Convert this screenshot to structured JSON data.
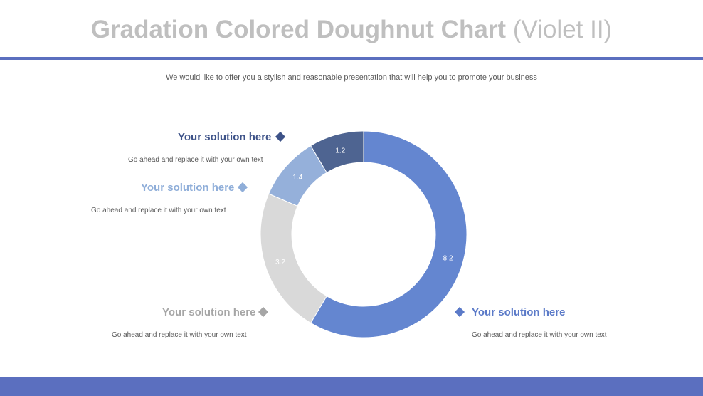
{
  "slide": {
    "title_bold": "Gradation Colored Doughnut Chart",
    "title_rest": "(Violet II)",
    "subtitle": "We would like to offer you a stylish and reasonable presentation that will help you to promote your business"
  },
  "colors": {
    "accent": "#5b6fbf",
    "title_gray": "#bfbfbf",
    "slice_dark": "#4e6491",
    "slice_light": "#95b0da",
    "slice_gray": "#d9d9d9",
    "slice_main": "#6486d0"
  },
  "callouts": [
    {
      "heading": "Your solution  here",
      "text": "Go ahead and replace it with your own text",
      "color": "#3d5288",
      "icon": "diamond-icon"
    },
    {
      "heading": "Your solution  here",
      "text": "Go ahead and replace it with your own text",
      "color": "#8faed9",
      "icon": "diamond-icon"
    },
    {
      "heading": "Your solution  here",
      "text": "Go ahead and replace it with your own text",
      "color": "#a6a6a6",
      "icon": "diamond-icon"
    },
    {
      "heading": "Your solution  here",
      "text": "Go ahead and replace it with your own text",
      "color": "#5b7ac8",
      "icon": "diamond-icon"
    }
  ],
  "chart_data": {
    "type": "pie",
    "variant": "doughnut",
    "values": [
      8.2,
      3.2,
      1.4,
      1.2
    ],
    "labels": [
      "8.2",
      "3.2",
      "1.4",
      "1.2"
    ],
    "colors": [
      "#6486d0",
      "#d9d9d9",
      "#95b0da",
      "#4e6491"
    ],
    "label_colors": [
      "#ffffff",
      "#ffffff",
      "#ffffff",
      "#ffffff"
    ],
    "start": "12 o'clock",
    "direction": "clockwise"
  }
}
